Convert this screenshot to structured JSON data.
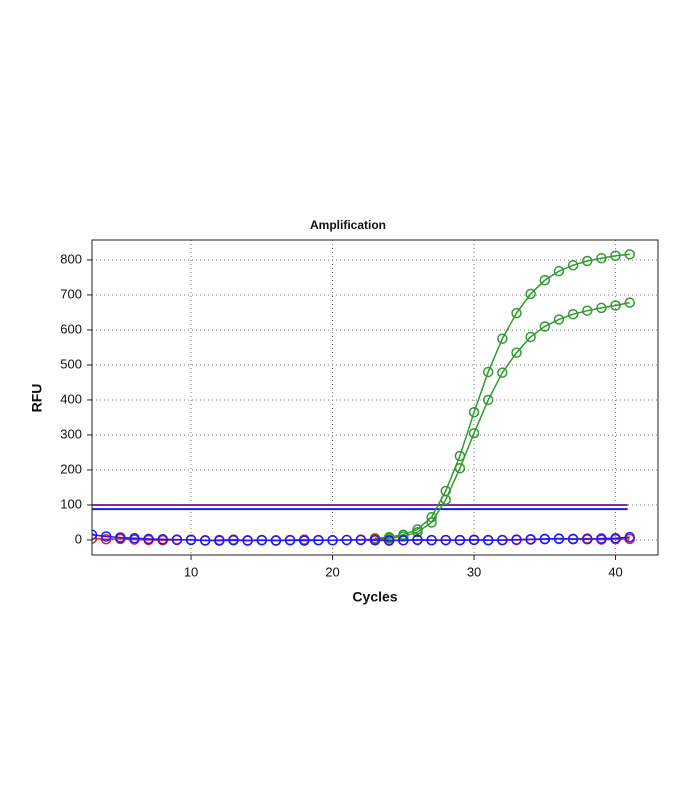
{
  "chart_data": {
    "type": "line",
    "title": "Amplification",
    "x_label": "Cycles",
    "y_label": "RFU",
    "x": [
      3,
      4,
      5,
      6,
      7,
      8,
      9,
      10,
      11,
      12,
      13,
      14,
      15,
      16,
      17,
      18,
      19,
      20,
      21,
      22,
      23,
      24,
      25,
      26,
      27,
      28,
      29,
      30,
      31,
      32,
      33,
      34,
      35,
      36,
      37,
      38,
      39,
      40,
      41
    ],
    "series": [
      {
        "color": "#2f9a2f",
        "values": [
          null,
          null,
          null,
          null,
          null,
          null,
          null,
          null,
          null,
          null,
          null,
          null,
          null,
          null,
          null,
          null,
          null,
          null,
          null,
          null,
          5,
          8,
          15,
          30,
          65,
          140,
          240,
          365,
          480,
          575,
          648,
          703,
          742,
          768,
          785,
          797,
          805,
          812,
          816
        ]
      },
      {
        "color": "#2f9a2f",
        "values": [
          null,
          null,
          null,
          null,
          null,
          null,
          null,
          null,
          null,
          null,
          null,
          null,
          null,
          null,
          null,
          null,
          null,
          null,
          null,
          null,
          2,
          5,
          10,
          22,
          50,
          115,
          205,
          305,
          400,
          478,
          535,
          580,
          610,
          630,
          645,
          655,
          663,
          670,
          678
        ]
      },
      {
        "color": "#e02020",
        "values": [
          4,
          2,
          3,
          1,
          0,
          -1,
          0,
          1,
          -2,
          0,
          1,
          -1,
          0,
          -1,
          0,
          1,
          0,
          -1,
          0,
          1,
          2,
          0,
          -1,
          1,
          0,
          -1,
          0,
          1,
          0,
          -1,
          0,
          1,
          2,
          3,
          2,
          4,
          1,
          2,
          3
        ]
      },
      {
        "color": "#1a1aff",
        "values": [
          15,
          10,
          7,
          5,
          3,
          2,
          1,
          0,
          -1,
          -2,
          -1,
          -2,
          -1,
          -2,
          -1,
          -2,
          -1,
          -1,
          0,
          0,
          -1,
          -2,
          -1,
          0,
          -1,
          0,
          -1,
          0,
          -1,
          0,
          1,
          2,
          3,
          4,
          3,
          2,
          4,
          5,
          8
        ]
      }
    ],
    "thresholds": [
      {
        "value": 100,
        "color": "#8a2a9a"
      },
      {
        "value": 88,
        "color": "#1a1aff"
      }
    ],
    "xlim": [
      3,
      43
    ],
    "xticks": [
      10,
      20,
      30,
      40
    ],
    "ylim": [
      -43,
      857
    ],
    "yticks": [
      0,
      100,
      200,
      300,
      400,
      500,
      600,
      700,
      800
    ],
    "grid": true
  }
}
